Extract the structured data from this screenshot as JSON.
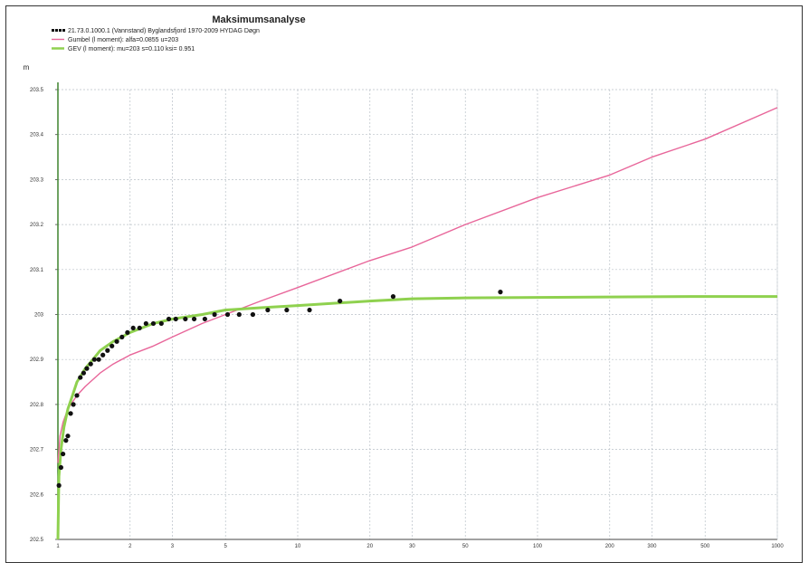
{
  "chart_data": {
    "type": "scatter",
    "title": "Maksimumsanalyse",
    "xlabel": "",
    "ylabel": "",
    "y_axis_corner_label": "m",
    "x_scale": "log",
    "xlim": [
      1,
      1000
    ],
    "ylim": [
      202.5,
      203.5
    ],
    "grid": true,
    "legend_placement": "top-left",
    "x_ticks": [
      1,
      2,
      3,
      5,
      10,
      20,
      30,
      50,
      100,
      200,
      300,
      500,
      1000
    ],
    "x_tick_labels": [
      "1",
      "2",
      "3",
      "5",
      "10",
      "20",
      "30",
      "50",
      "100",
      "200",
      "300",
      "500",
      "1000"
    ],
    "y_ticks": [
      202.5,
      202.6,
      202.7,
      202.8,
      202.9,
      203.0,
      203.1,
      203.2,
      203.3,
      203.4,
      203.5
    ],
    "y_tick_labels": [
      "202.5",
      "202.6",
      "202.7",
      "202.8",
      "202.9",
      "203",
      "203.1",
      "203.2",
      "203.3",
      "203.4",
      "203.5"
    ],
    "series": [
      {
        "name": "21.73.0.1000.1 (Vannstand) Byglandsfjord 1970-2009 HYDAG Døgn",
        "kind": "points",
        "color": "#111111",
        "x": [
          1.01,
          1.03,
          1.05,
          1.08,
          1.1,
          1.13,
          1.16,
          1.2,
          1.24,
          1.28,
          1.32,
          1.37,
          1.42,
          1.48,
          1.54,
          1.61,
          1.68,
          1.76,
          1.85,
          1.95,
          2.06,
          2.19,
          2.33,
          2.5,
          2.7,
          2.9,
          3.1,
          3.4,
          3.7,
          4.1,
          4.5,
          5.1,
          5.7,
          6.5,
          7.5,
          9.0,
          11.2,
          15.0,
          25.0,
          70.0
        ],
        "y": [
          202.62,
          202.66,
          202.69,
          202.72,
          202.73,
          202.78,
          202.8,
          202.82,
          202.86,
          202.87,
          202.88,
          202.89,
          202.9,
          202.9,
          202.91,
          202.92,
          202.93,
          202.94,
          202.95,
          202.96,
          202.97,
          202.97,
          202.98,
          202.98,
          202.98,
          202.99,
          202.99,
          202.99,
          202.99,
          202.99,
          203.0,
          203.0,
          203.0,
          203.0,
          203.01,
          203.01,
          203.01,
          203.03,
          203.04,
          203.05
        ]
      },
      {
        "name": "Gumbel (l moment): alfa=0.0855 u=203",
        "kind": "line",
        "color": "#e8669a",
        "x": [
          1.0,
          1.02,
          1.05,
          1.1,
          1.2,
          1.3,
          1.5,
          1.7,
          2.0,
          2.5,
          3.0,
          4.0,
          5.0,
          7.0,
          10.0,
          20.0,
          30.0,
          50.0,
          100.0,
          200.0,
          300.0,
          500.0,
          1000.0
        ],
        "y": [
          202.67,
          202.73,
          202.76,
          202.79,
          202.82,
          202.84,
          202.87,
          202.89,
          202.91,
          202.93,
          202.95,
          202.98,
          203.0,
          203.03,
          203.06,
          203.12,
          203.15,
          203.2,
          203.26,
          203.31,
          203.35,
          203.39,
          203.46
        ]
      },
      {
        "name": "GEV (l moment): mu=203 s=0.110 ksi= 0.951",
        "kind": "line",
        "color": "#8fd14f",
        "x": [
          1.0,
          1.01,
          1.03,
          1.06,
          1.1,
          1.15,
          1.2,
          1.3,
          1.4,
          1.5,
          1.7,
          2.0,
          2.5,
          3.0,
          4.0,
          5.0,
          7.0,
          10.0,
          20.0,
          30.0,
          50.0,
          100.0,
          200.0,
          500.0,
          1000.0
        ],
        "y": [
          202.5,
          202.64,
          202.7,
          202.75,
          202.79,
          202.82,
          202.85,
          202.88,
          202.9,
          202.92,
          202.94,
          202.96,
          202.98,
          202.99,
          203.0,
          203.01,
          203.015,
          203.02,
          203.03,
          203.035,
          203.037,
          203.038,
          203.039,
          203.04,
          203.04
        ]
      }
    ]
  }
}
